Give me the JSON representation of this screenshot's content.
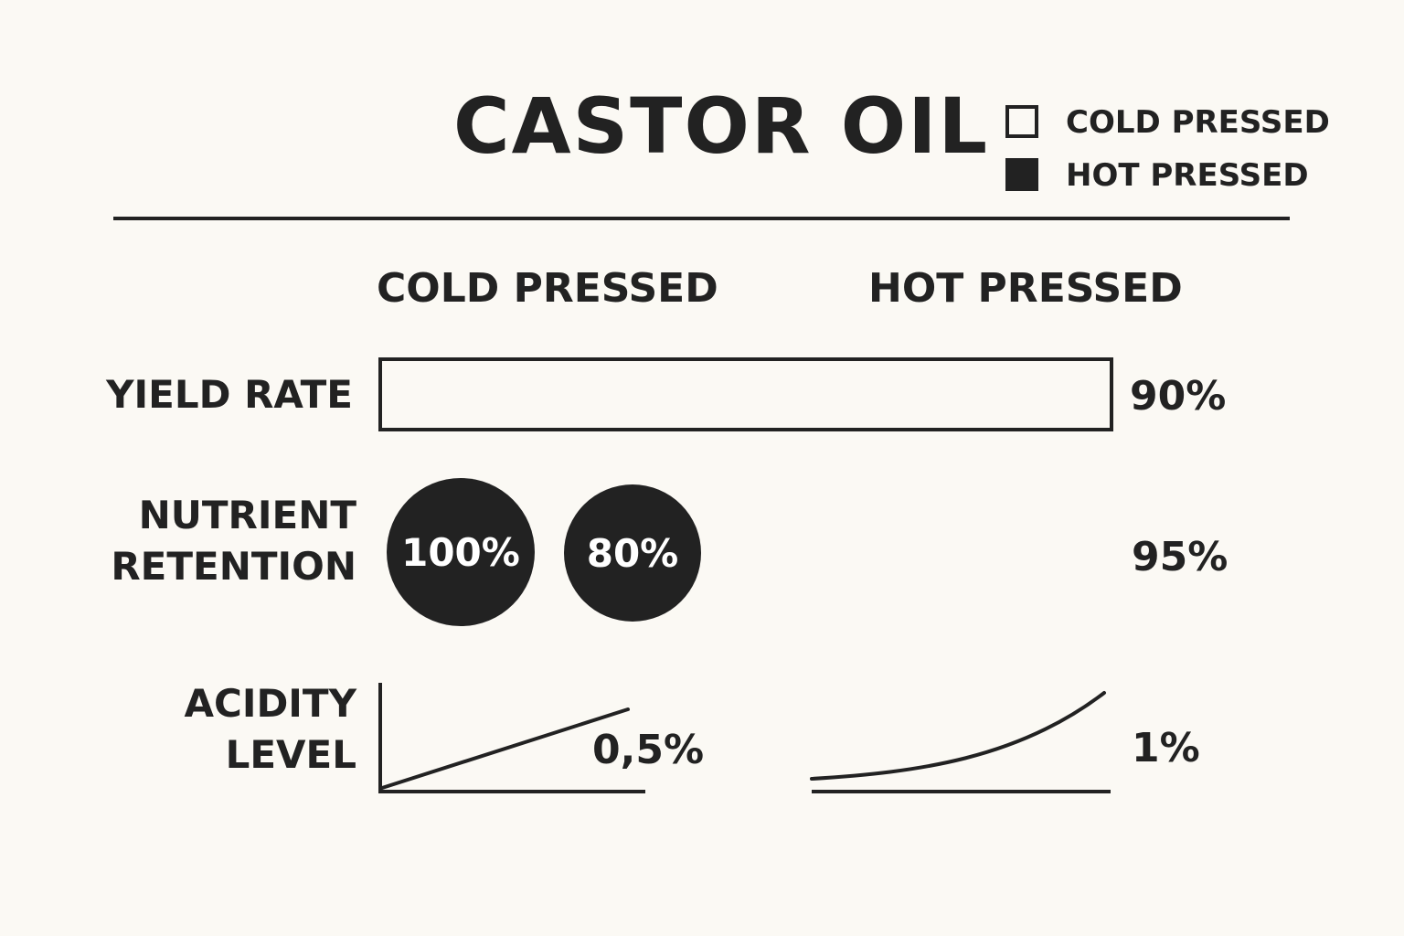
{
  "title": "CASTOR OIL",
  "legend": [
    {
      "label": "COLD PRESSED",
      "style": "outline"
    },
    {
      "label": "HOT PRESSED",
      "style": "filled"
    }
  ],
  "columns": {
    "cold": "COLD PRESSED",
    "hot": "HOT PRESSED"
  },
  "rows": {
    "yield_rate": {
      "label": "YIELD RATE",
      "value_text": "90%",
      "bar_fill_fraction": 1.0
    },
    "nutrient_retention": {
      "label_line1": "NUTRIENT",
      "label_line2": "RETENTION",
      "circles": [
        "100%",
        "80%"
      ],
      "value_text": "95%"
    },
    "acidity_level": {
      "label_line1": "ACIDITY",
      "label_line2": "LEVEL",
      "cold_value_text": "0,5%",
      "hot_value_text": "1%"
    }
  },
  "colors": {
    "background": "#fbf9f4",
    "ink": "#222222",
    "circle_text": "#ffffff"
  }
}
